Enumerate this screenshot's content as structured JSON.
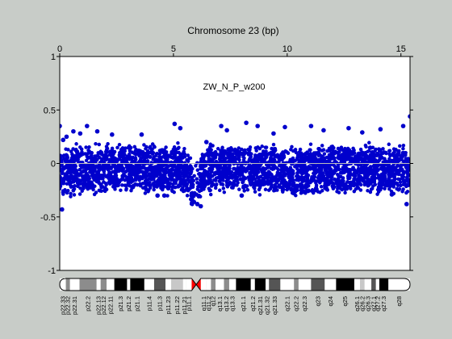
{
  "chart_data": {
    "type": "scatter",
    "title": "Chromosome 23 (bp)",
    "sample_label": "ZW_N_P_w200",
    "x_ticks": [
      0,
      5,
      10,
      15
    ],
    "y_ticks": [
      1,
      0.5,
      0,
      -0.5,
      -1
    ],
    "xlim": [
      0,
      15.4
    ],
    "ylim": [
      -1,
      1
    ],
    "grid": false,
    "marker_color": "#0000cc",
    "baseline": 0,
    "centromere_at": 6.0,
    "series": [
      {
        "x": [
          0.0,
          0.35,
          0.7,
          1.05,
          1.4,
          1.75,
          2.1,
          2.45,
          2.8,
          3.15,
          3.5,
          3.85,
          4.2,
          4.55,
          4.9,
          5.25,
          5.6,
          5.85,
          6.05,
          6.25,
          6.6,
          6.95,
          7.3,
          7.65,
          8.0,
          8.35,
          8.7,
          9.05,
          9.4,
          9.75,
          10.1,
          10.45,
          10.8,
          11.15,
          11.5,
          11.85,
          12.2,
          12.55,
          12.9,
          13.25,
          13.6,
          13.95,
          14.3,
          14.65,
          15.0,
          15.35
        ],
        "y": [
          -0.12,
          -0.08,
          -0.06,
          -0.07,
          -0.05,
          -0.06,
          -0.05,
          -0.04,
          -0.05,
          -0.05,
          -0.06,
          -0.05,
          -0.05,
          -0.06,
          -0.06,
          -0.05,
          -0.08,
          -0.22,
          -0.18,
          -0.1,
          -0.05,
          -0.05,
          -0.04,
          -0.05,
          -0.05,
          -0.04,
          -0.05,
          -0.05,
          -0.05,
          -0.06,
          -0.07,
          -0.09,
          -0.06,
          -0.05,
          -0.06,
          -0.05,
          -0.05,
          -0.05,
          -0.04,
          -0.05,
          -0.05,
          -0.05,
          -0.05,
          -0.04,
          -0.05,
          -0.06
        ]
      }
    ]
  },
  "outliers": {
    "x": [
      0.0,
      0.1,
      0.15,
      0.3,
      0.6,
      0.9,
      1.2,
      1.65,
      2.3,
      3.6,
      4.3,
      4.6,
      5.05,
      5.3,
      5.9,
      6.05,
      6.2,
      6.45,
      7.1,
      7.35,
      8.0,
      8.2,
      8.7,
      9.4,
      9.9,
      11.05,
      11.6,
      12.7,
      13.3,
      14.1,
      14.6,
      15.1,
      15.25,
      15.4
    ],
    "y": [
      0.35,
      -0.43,
      0.22,
      0.25,
      0.3,
      0.28,
      0.35,
      0.3,
      0.27,
      0.27,
      -0.3,
      -0.3,
      0.37,
      0.33,
      -0.36,
      -0.38,
      -0.4,
      0.2,
      0.35,
      0.31,
      -0.3,
      0.38,
      0.35,
      0.28,
      0.34,
      0.35,
      0.31,
      0.33,
      0.29,
      0.32,
      -0.29,
      0.35,
      -0.38,
      0.44
    ]
  },
  "ideogram": {
    "centromere_at": 6.0,
    "bands": [
      {
        "name": "p22.33",
        "start": 0.0,
        "end": 0.27,
        "stain": "gneg"
      },
      {
        "name": "p22.32",
        "start": 0.27,
        "end": 0.45,
        "stain": "gpos50"
      },
      {
        "name": "p22.31",
        "start": 0.45,
        "end": 0.87,
        "stain": "gneg"
      },
      {
        "name": "p22.2",
        "start": 0.87,
        "end": 1.62,
        "stain": "gpos50"
      },
      {
        "name": "p22.13",
        "start": 1.62,
        "end": 1.8,
        "stain": "gneg"
      },
      {
        "name": "p22.12",
        "start": 1.8,
        "end": 2.06,
        "stain": "gpos50"
      },
      {
        "name": "p22.11",
        "start": 2.06,
        "end": 2.4,
        "stain": "gneg"
      },
      {
        "name": "p21.3",
        "start": 2.4,
        "end": 2.96,
        "stain": "gpos100"
      },
      {
        "name": "p21.2",
        "start": 2.96,
        "end": 3.1,
        "stain": "gneg"
      },
      {
        "name": "p21.1",
        "start": 3.1,
        "end": 3.72,
        "stain": "gpos100"
      },
      {
        "name": "p11.4",
        "start": 3.72,
        "end": 4.15,
        "stain": "gneg"
      },
      {
        "name": "p11.3",
        "start": 4.15,
        "end": 4.65,
        "stain": "gpos75"
      },
      {
        "name": "p11.23",
        "start": 4.65,
        "end": 4.9,
        "stain": "gneg"
      },
      {
        "name": "p11.22",
        "start": 4.9,
        "end": 5.42,
        "stain": "gpos25"
      },
      {
        "name": "p11.21",
        "start": 5.42,
        "end": 5.56,
        "stain": "gneg"
      },
      {
        "name": "p11.1",
        "start": 5.56,
        "end": 5.8,
        "stain": "gneg"
      },
      {
        "name": "q11.1",
        "start": 6.2,
        "end": 6.45,
        "stain": "gneg"
      },
      {
        "name": "q11.2",
        "start": 6.45,
        "end": 6.65,
        "stain": "gneg"
      },
      {
        "name": "q12",
        "start": 6.65,
        "end": 6.85,
        "stain": "gpos50"
      },
      {
        "name": "q13.1",
        "start": 6.85,
        "end": 7.22,
        "stain": "gneg"
      },
      {
        "name": "q13.2",
        "start": 7.22,
        "end": 7.45,
        "stain": "gpos50"
      },
      {
        "name": "q13.3",
        "start": 7.45,
        "end": 7.75,
        "stain": "gneg"
      },
      {
        "name": "q21.1",
        "start": 7.75,
        "end": 8.4,
        "stain": "gpos100"
      },
      {
        "name": "q21.2",
        "start": 8.4,
        "end": 8.58,
        "stain": "gneg"
      },
      {
        "name": "q21.31",
        "start": 8.58,
        "end": 9.05,
        "stain": "gpos100"
      },
      {
        "name": "q21.32",
        "start": 9.05,
        "end": 9.2,
        "stain": "gneg"
      },
      {
        "name": "q21.33",
        "start": 9.2,
        "end": 9.7,
        "stain": "gpos75"
      },
      {
        "name": "q22.1",
        "start": 9.7,
        "end": 10.3,
        "stain": "gneg"
      },
      {
        "name": "q22.2",
        "start": 10.3,
        "end": 10.5,
        "stain": "gpos50"
      },
      {
        "name": "q22.3",
        "start": 10.5,
        "end": 11.05,
        "stain": "gneg"
      },
      {
        "name": "q23",
        "start": 11.05,
        "end": 11.65,
        "stain": "gpos75"
      },
      {
        "name": "q24",
        "start": 11.65,
        "end": 12.15,
        "stain": "gneg"
      },
      {
        "name": "q25",
        "start": 12.15,
        "end": 12.95,
        "stain": "gpos100"
      },
      {
        "name": "q26.1",
        "start": 12.95,
        "end": 13.2,
        "stain": "gneg"
      },
      {
        "name": "q26.2",
        "start": 13.2,
        "end": 13.4,
        "stain": "gpos25"
      },
      {
        "name": "q26.3",
        "start": 13.4,
        "end": 13.7,
        "stain": "gneg"
      },
      {
        "name": "q27.1",
        "start": 13.7,
        "end": 13.9,
        "stain": "gpos75"
      },
      {
        "name": "q27.2",
        "start": 13.9,
        "end": 14.05,
        "stain": "gneg"
      },
      {
        "name": "q27.3",
        "start": 14.05,
        "end": 14.45,
        "stain": "gpos100"
      },
      {
        "name": "q28",
        "start": 14.45,
        "end": 15.4,
        "stain": "gneg"
      }
    ]
  }
}
